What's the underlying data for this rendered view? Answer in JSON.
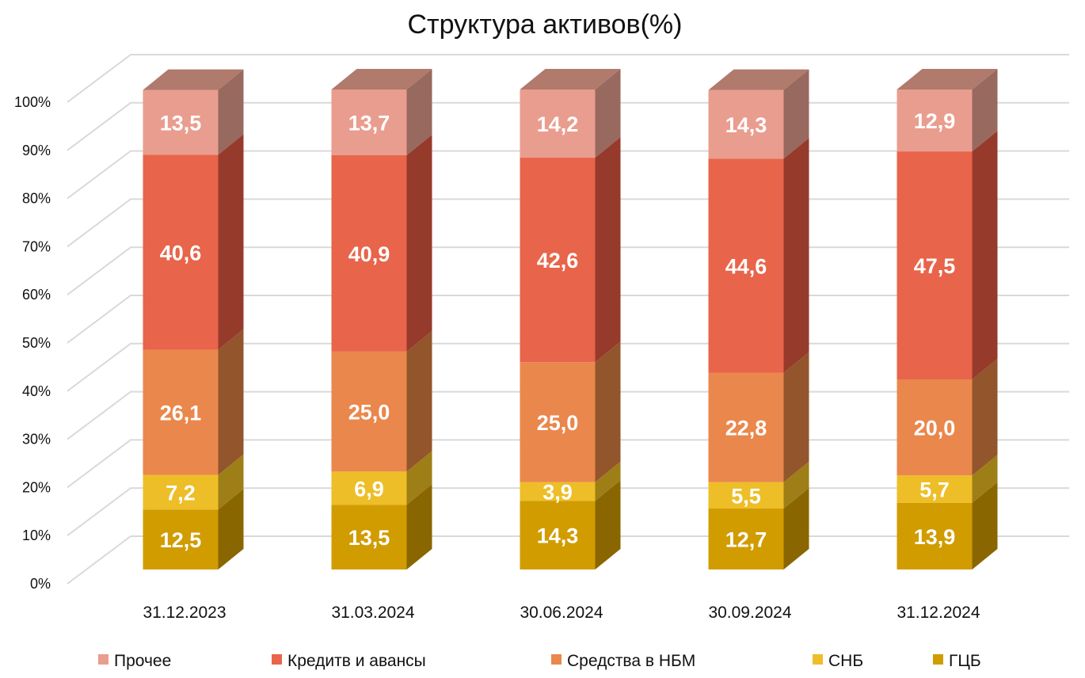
{
  "chart_data": {
    "type": "bar",
    "stacked": true,
    "style": "3d",
    "title": "Структура активов(%)",
    "xlabel": "",
    "ylabel": "",
    "ylim": [
      0,
      100
    ],
    "y_ticks": [
      "0%",
      "10%",
      "20%",
      "30%",
      "40%",
      "50%",
      "60%",
      "70%",
      "80%",
      "90%",
      "100%"
    ],
    "categories": [
      "31.12.2023",
      "31.03.2024",
      "30.06.2024",
      "30.09.2024",
      "31.12.2024"
    ],
    "series": [
      {
        "name": "ГЦБ",
        "color": "#D19C00",
        "side": "#8A6600",
        "top": "#A88000",
        "values": [
          12.5,
          13.5,
          14.3,
          12.7,
          13.9
        ],
        "labels": [
          "12,5",
          "13,5",
          "14,3",
          "12,7",
          "13,9"
        ]
      },
      {
        "name": "СНБ",
        "color": "#EDBE27",
        "side": "#9E7E16",
        "top": "#C49C1E",
        "values": [
          7.2,
          6.9,
          3.9,
          5.5,
          5.7
        ],
        "labels": [
          "7,2",
          "6,9",
          "3,9",
          "5,5",
          "5,7"
        ]
      },
      {
        "name": "Средства в НБМ",
        "color": "#EA874C",
        "side": "#93552C",
        "top": "#B86A3C",
        "values": [
          26.1,
          25.0,
          25.0,
          22.8,
          20.0
        ],
        "labels": [
          "26,1",
          "25,0",
          "25,0",
          "22,8",
          "20,0"
        ]
      },
      {
        "name": "Кредитв и авансы",
        "color": "#E8644A",
        "side": "#963A2C",
        "top": "#B84E3A",
        "values": [
          40.6,
          40.9,
          42.6,
          44.6,
          47.5
        ],
        "labels": [
          "40,6",
          "40,9",
          "42,6",
          "44,6",
          "47,5"
        ]
      },
      {
        "name": "Прочее",
        "color": "#E99D8E",
        "side": "#98695E",
        "top": "#B07A6C",
        "values": [
          13.5,
          13.7,
          14.2,
          14.3,
          12.9
        ],
        "labels": [
          "13,5",
          "13,7",
          "14,2",
          "14,3",
          "12,9"
        ]
      }
    ],
    "legend": {
      "position": "bottom",
      "order": [
        "Прочее",
        "Кредитв и авансы",
        "Средства в НБМ",
        "СНБ",
        "ГЦБ"
      ]
    },
    "grid": true
  }
}
